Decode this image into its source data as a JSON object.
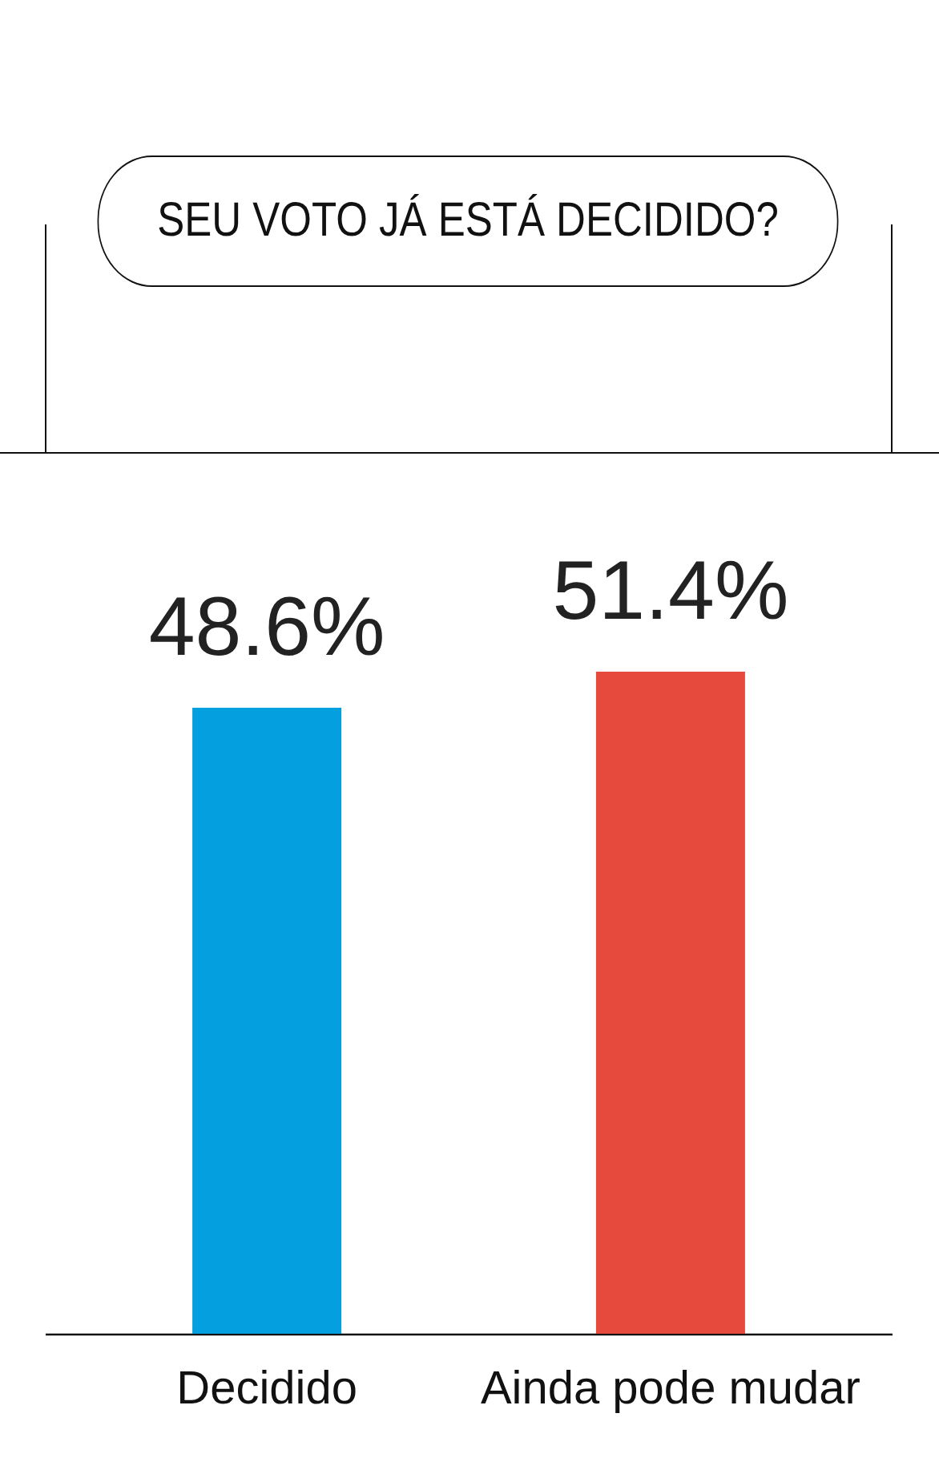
{
  "chart_data": {
    "type": "bar",
    "title": "SEU VOTO JÁ ESTÁ DECIDIDO?",
    "categories": [
      "Decidido",
      "Ainda pode mudar"
    ],
    "values": [
      48.6,
      51.4
    ],
    "value_labels": [
      "48.6%",
      "51.4%"
    ],
    "colors": [
      "#039fdf",
      "#e54a3c"
    ]
  }
}
